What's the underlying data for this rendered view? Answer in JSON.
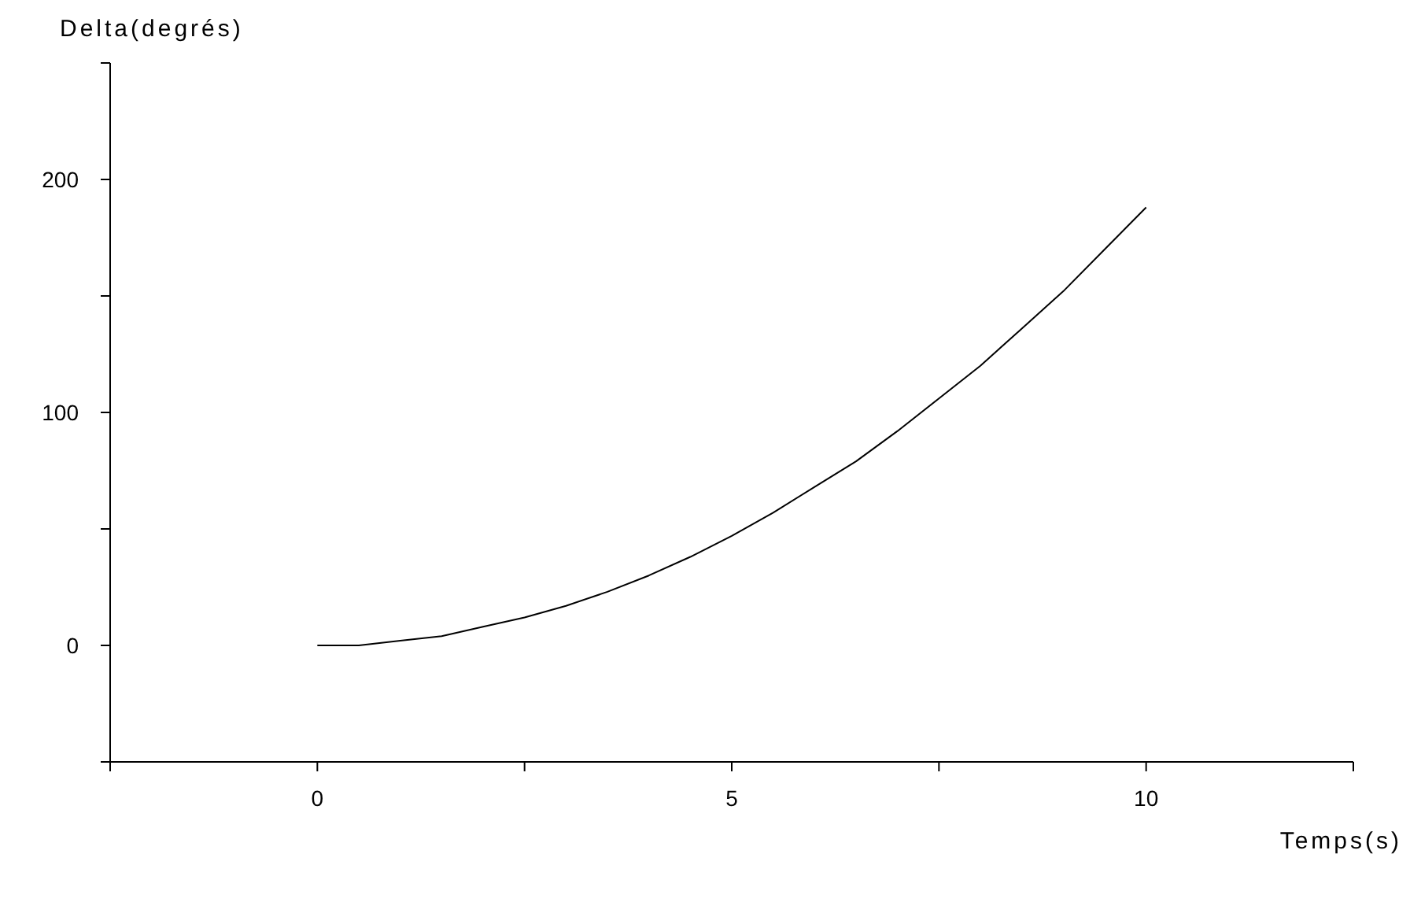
{
  "chart_data": {
    "type": "line",
    "xlabel": "Temps(s)",
    "ylabel": "Delta(degrés)",
    "x": [
      0,
      0.5,
      1,
      1.5,
      2,
      2.5,
      3,
      3.5,
      4,
      4.5,
      5,
      5.5,
      6,
      6.5,
      7,
      7.5,
      8,
      8.5,
      9,
      9.5,
      10
    ],
    "series": [
      {
        "color": "#000000",
        "values": [
          0,
          0,
          2,
          4,
          8,
          12,
          17,
          23,
          30,
          38,
          47,
          57,
          68,
          79,
          92,
          106,
          120,
          136,
          152,
          170,
          188
        ]
      }
    ],
    "xlim": [
      -2.5,
      12.5
    ],
    "xticks": [
      {
        "value": -2.5,
        "label": null
      },
      0,
      {
        "value": 2.5,
        "label": null
      },
      5,
      {
        "value": 7.5,
        "label": null
      },
      10,
      {
        "value": 12.5,
        "label": null
      }
    ],
    "ylim": [
      -50,
      250
    ],
    "yticks": [
      {
        "value": -50,
        "label": null
      },
      0,
      {
        "value": 50,
        "label": null
      },
      100,
      {
        "value": 150,
        "label": null
      },
      200,
      {
        "value": 250,
        "label": null
      }
    ],
    "grid": false,
    "legend": false,
    "marker": "none",
    "line_style": "solid"
  }
}
